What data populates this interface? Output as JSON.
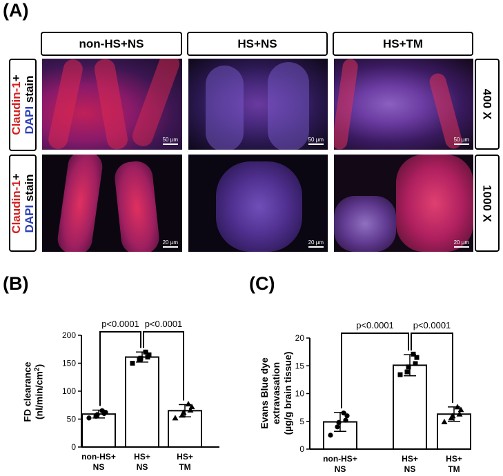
{
  "panel_labels": {
    "a": "(A)",
    "b": "(B)",
    "c": "(C)"
  },
  "columns": [
    "non-HS+NS",
    "HS+NS",
    "HS+TM"
  ],
  "row_label": {
    "part1": "Claudin-1",
    "part2": "+",
    "part3": "DAPI",
    "part4": " stain"
  },
  "magnifications": [
    "400 X",
    "1000 X"
  ],
  "scale_bars": {
    "row1": "50 µm",
    "row2": "20 µm"
  },
  "colors": {
    "claudin": "#d42020",
    "dapi": "#2c3fb5"
  },
  "chart_data": [
    {
      "type": "bar",
      "panel": "(B)",
      "title": "",
      "ylabel_line1": "FD clearance",
      "ylabel_line2": "(nl/min/cm²)",
      "categories": [
        [
          "non-HS+",
          "NS"
        ],
        [
          "HS+",
          "NS"
        ],
        [
          "HS+",
          "TM"
        ]
      ],
      "values": [
        59,
        161,
        65
      ],
      "errors": [
        7,
        9,
        11
      ],
      "ylim": [
        0,
        200
      ],
      "yticks": [
        0,
        50,
        100,
        150,
        200
      ],
      "points": [
        {
          "marker": "circle",
          "values": [
            52,
            55,
            58,
            60,
            62,
            65
          ]
        },
        {
          "marker": "square",
          "values": [
            150,
            156,
            159,
            161,
            165,
            170
          ]
        },
        {
          "marker": "triangle",
          "values": [
            52,
            57,
            62,
            66,
            72,
            77
          ]
        }
      ],
      "comparisons": [
        {
          "from": 0,
          "to": 1,
          "label": "p<0.0001"
        },
        {
          "from": 1,
          "to": 2,
          "label": "p<0.0001"
        }
      ]
    },
    {
      "type": "bar",
      "panel": "(C)",
      "title": "",
      "ylabel_line1": "Evans Blue dye",
      "ylabel_line2": "extravasation",
      "ylabel_line3": "(µg/g brain tissue)",
      "categories": [
        [
          "non-HS+",
          "NS"
        ],
        [
          "HS+",
          "NS"
        ],
        [
          "HS+",
          "TM"
        ]
      ],
      "values": [
        4.9,
        15.1,
        6.3
      ],
      "errors": [
        1.7,
        1.9,
        1.3
      ],
      "ylim": [
        0,
        20
      ],
      "yticks": [
        0,
        5,
        10,
        15,
        20
      ],
      "points": [
        {
          "marker": "circle",
          "values": [
            2.5,
            4.0,
            4.8,
            5.2,
            6.0,
            6.5
          ]
        },
        {
          "marker": "square",
          "values": [
            13.4,
            13.9,
            14.8,
            15.4,
            16.5,
            17.1
          ]
        },
        {
          "marker": "triangle",
          "values": [
            4.9,
            5.6,
            6.0,
            6.3,
            7.1,
            7.6
          ]
        }
      ],
      "comparisons": [
        {
          "from": 0,
          "to": 1,
          "label": "p<0.0001"
        },
        {
          "from": 1,
          "to": 2,
          "label": "p<0.0001"
        }
      ]
    }
  ]
}
